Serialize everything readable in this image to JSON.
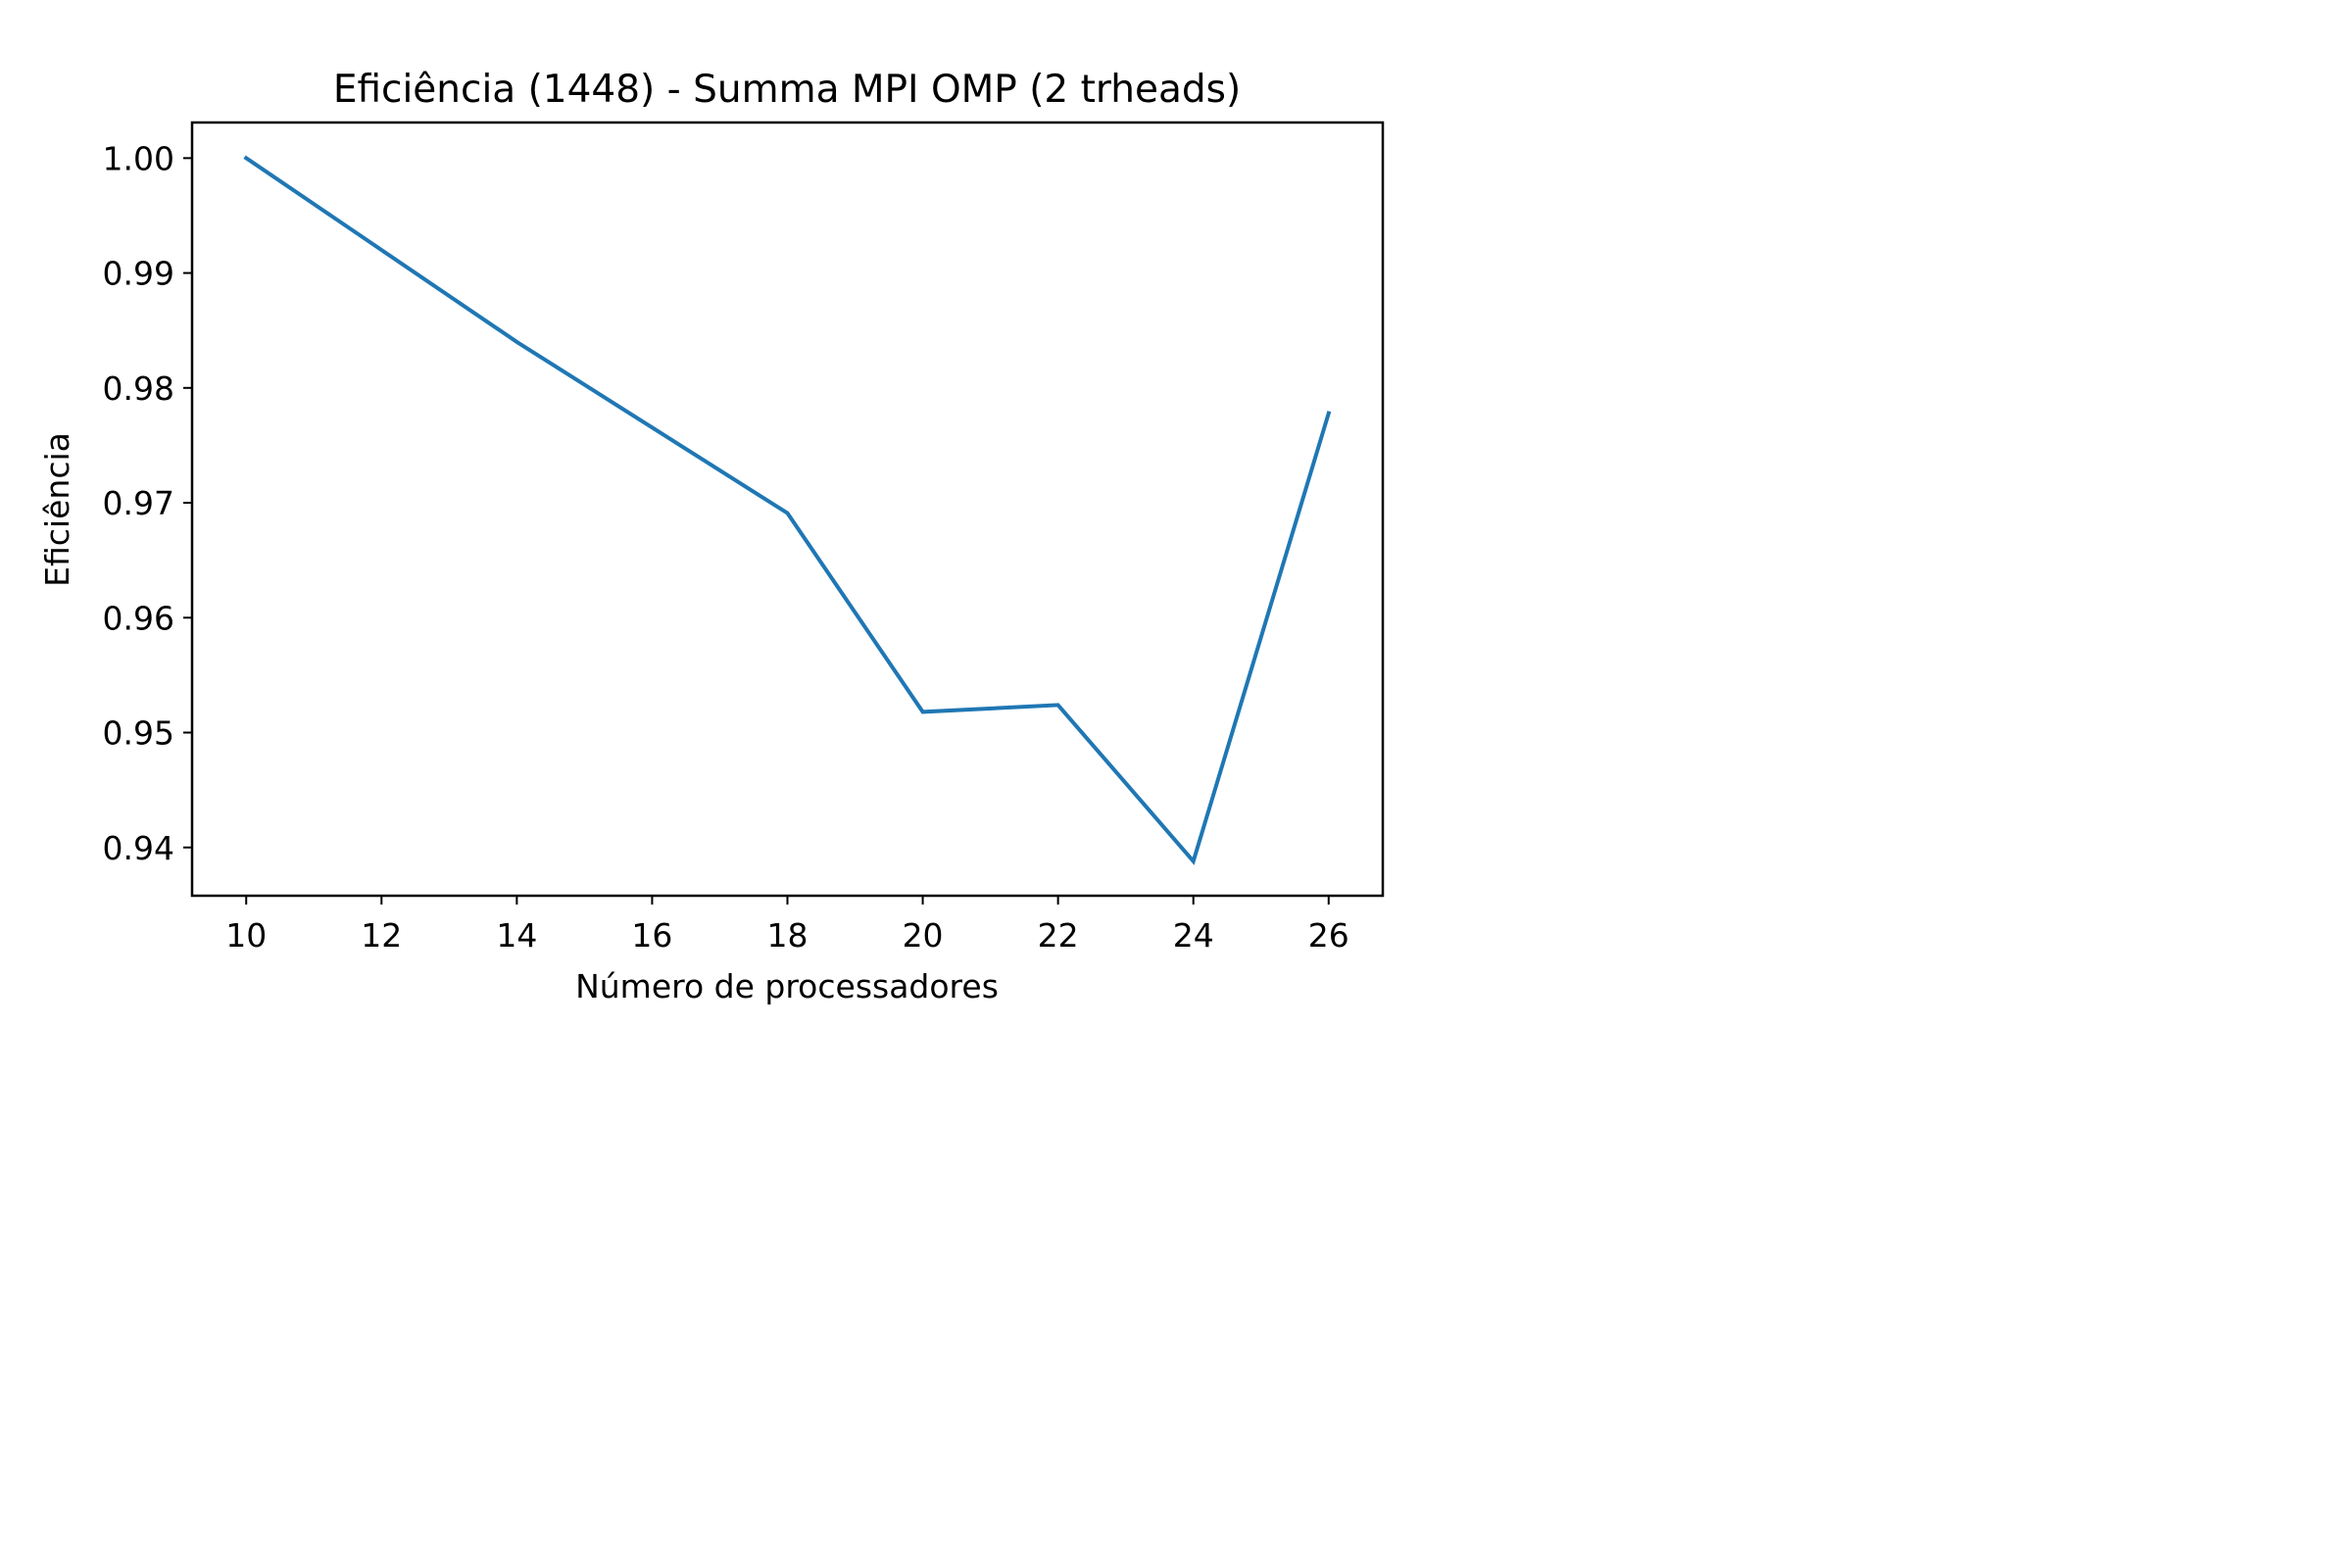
{
  "chart_data": {
    "type": "line",
    "title": "Eficiência (1448) - Summa MPI OMP (2 trheads)",
    "xlabel": "Número de processadores",
    "ylabel": "Eficiência",
    "x": [
      10,
      14,
      18,
      20,
      22,
      24,
      26
    ],
    "series": [
      {
        "values": [
          1.0,
          0.984,
          0.9691,
          0.9518,
          0.9524,
          0.9388,
          0.9778
        ],
        "color": "#1f77b4"
      }
    ],
    "xticks": [
      "10",
      "12",
      "14",
      "16",
      "18",
      "20",
      "22",
      "24",
      "26"
    ],
    "yticks": [
      "0.94",
      "0.95",
      "0.96",
      "0.97",
      "0.98",
      "0.99",
      "1.00"
    ],
    "xlim": [
      9.2,
      26.8
    ],
    "ylim": [
      0.9358,
      1.0031
    ],
    "grid": false,
    "legend": "none"
  }
}
